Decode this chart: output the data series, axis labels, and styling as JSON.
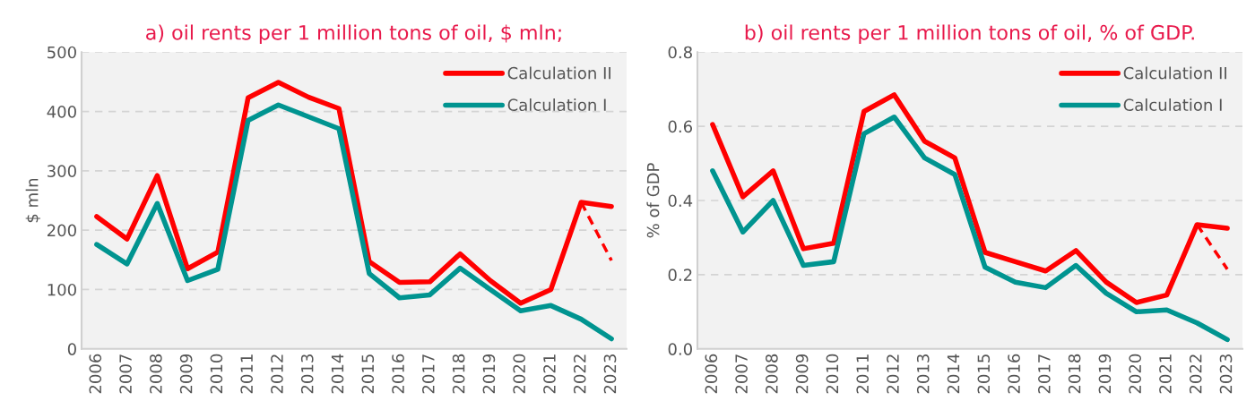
{
  "chart_data": [
    {
      "type": "line",
      "title": "a) oil rents per 1 million tons of oil, $ mln;",
      "ylabel": "$ mln",
      "categories": [
        "2006",
        "2007",
        "2008",
        "2009",
        "2010",
        "2011",
        "2012",
        "2013",
        "2014",
        "2015",
        "2016",
        "2017",
        "2018",
        "2019",
        "2020",
        "2021",
        "2022",
        "2023"
      ],
      "series": [
        {
          "name": "Calculation II",
          "color": "#ff0000",
          "values": [
            223,
            185,
            292,
            135,
            163,
            423,
            449,
            424,
            405,
            147,
            112,
            113,
            160,
            115,
            77,
            100,
            247,
            240
          ]
        },
        {
          "name": "Calculation I",
          "color": "#009490",
          "values": [
            176,
            143,
            245,
            115,
            134,
            385,
            411,
            391,
            371,
            127,
            86,
            91,
            136,
            100,
            64,
            73,
            50,
            17
          ]
        },
        {
          "color": "#ff0000",
          "line_style": "dashed",
          "values": [
            null,
            null,
            null,
            null,
            null,
            null,
            null,
            null,
            null,
            null,
            null,
            null,
            null,
            null,
            null,
            null,
            247,
            149
          ]
        }
      ],
      "ylim": [
        0,
        500
      ],
      "yticks": [
        0,
        100,
        200,
        300,
        400,
        500
      ],
      "grid": "y",
      "legend": "top right"
    },
    {
      "type": "line",
      "title": "b) oil rents per 1 million tons of oil, % of GDP.",
      "ylabel": "% of GDP",
      "categories": [
        "2006",
        "2007",
        "2008",
        "2009",
        "2010",
        "2011",
        "2012",
        "2013",
        "2014",
        "2015",
        "2016",
        "2017",
        "2018",
        "2019",
        "2020",
        "2021",
        "2022",
        "2023"
      ],
      "series": [
        {
          "name": "Calculation II",
          "color": "#ff0000",
          "values": [
            0.605,
            0.41,
            0.48,
            0.27,
            0.285,
            0.64,
            0.685,
            0.56,
            0.515,
            0.26,
            0.235,
            0.21,
            0.265,
            0.18,
            0.125,
            0.145,
            0.335,
            0.325
          ]
        },
        {
          "name": "Calculation I",
          "color": "#009490",
          "values": [
            0.48,
            0.315,
            0.4,
            0.225,
            0.235,
            0.58,
            0.625,
            0.515,
            0.47,
            0.22,
            0.18,
            0.165,
            0.225,
            0.15,
            0.1,
            0.105,
            0.07,
            0.025
          ]
        },
        {
          "color": "#ff0000",
          "line_style": "dashed",
          "values": [
            null,
            null,
            null,
            null,
            null,
            null,
            null,
            null,
            null,
            null,
            null,
            null,
            null,
            null,
            null,
            null,
            0.335,
            0.215
          ]
        }
      ],
      "ylim": [
        0,
        0.8
      ],
      "yticks": [
        {
          "value": 0,
          "label": "0.0"
        },
        {
          "value": 0.2,
          "label": "0.2"
        },
        {
          "value": 0.4,
          "label": "0.4"
        },
        {
          "value": 0.6,
          "label": "0.6"
        },
        {
          "value": 0.8,
          "label": "0.8"
        }
      ],
      "grid": "y",
      "legend": "top right"
    }
  ]
}
